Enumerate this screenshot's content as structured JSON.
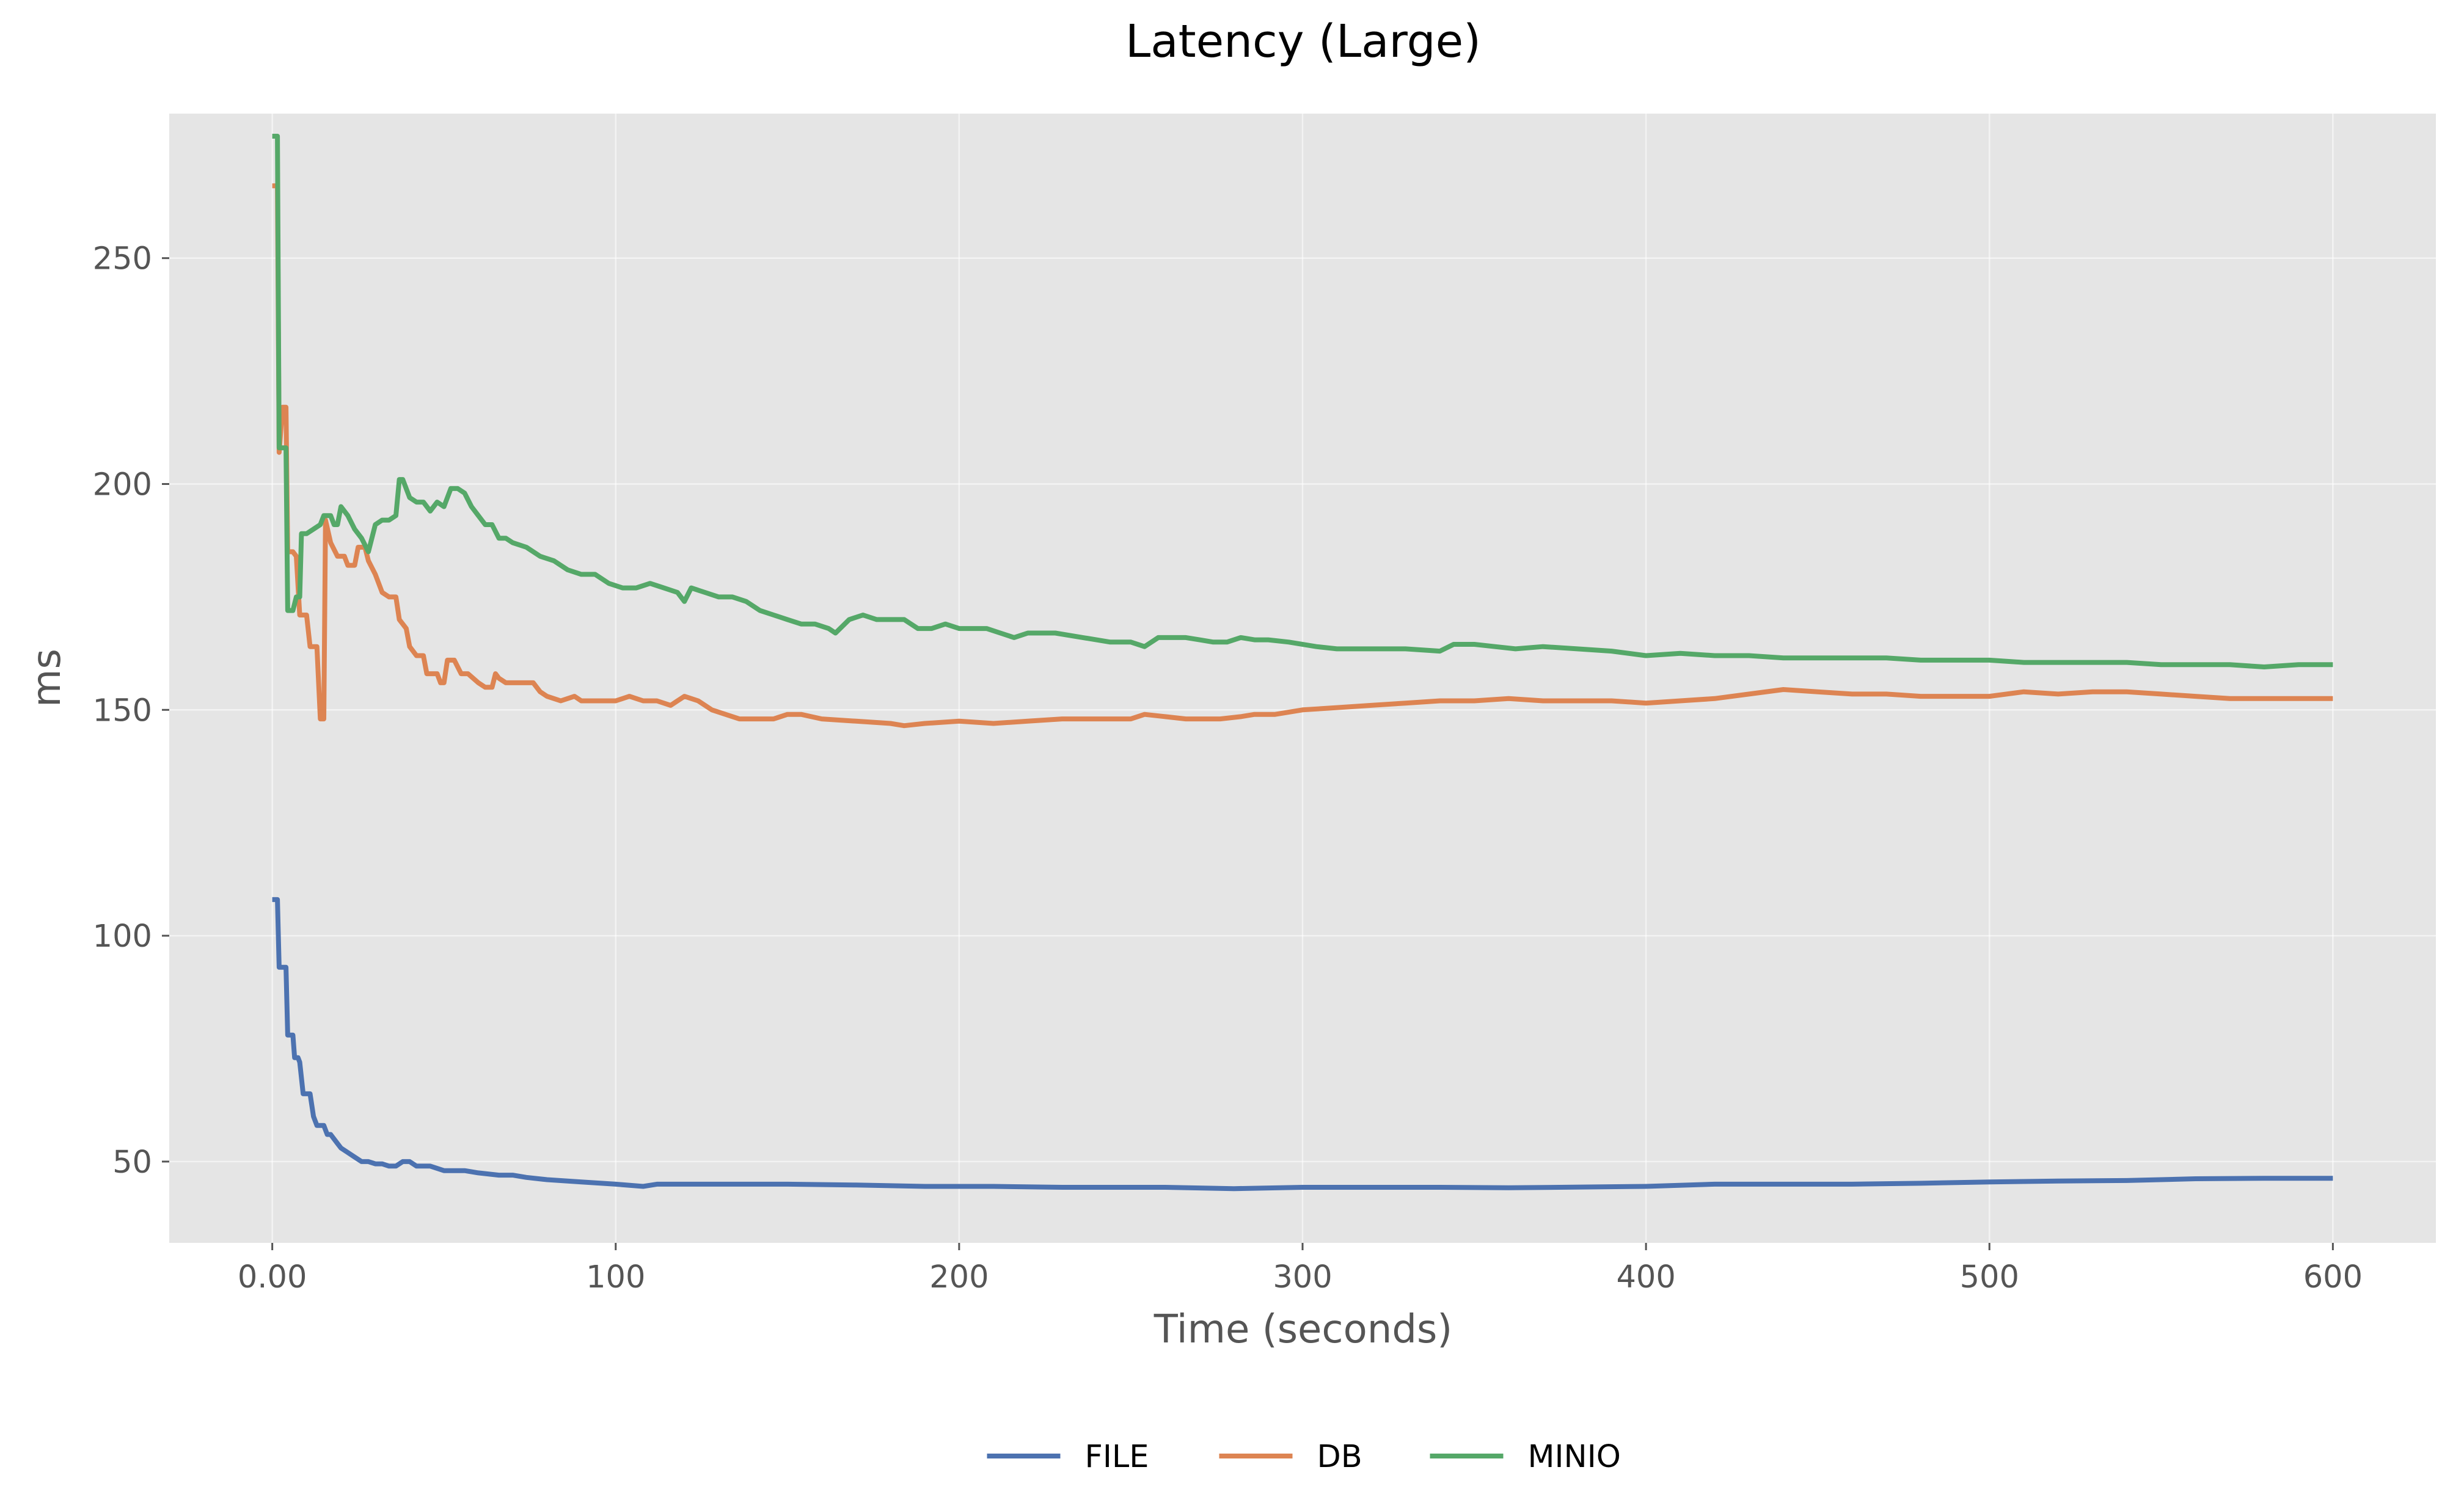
{
  "chart_data": {
    "type": "line",
    "title": "Latency (Large)",
    "xlabel": "Time (seconds)",
    "ylabel": "ms",
    "xlim": [
      -30,
      630
    ],
    "ylim": [
      32,
      282
    ],
    "x_ticks": [
      0,
      100,
      200,
      300,
      400,
      500,
      600
    ],
    "x_tick_labels": [
      "0.00",
      "100",
      "200",
      "300",
      "400",
      "500",
      "600"
    ],
    "y_ticks": [
      50,
      100,
      150,
      200,
      250
    ],
    "y_tick_labels": [
      "50",
      "100",
      "150",
      "200",
      "250"
    ],
    "grid": true,
    "legend_position": "bottom-center",
    "series": [
      {
        "name": "FILE",
        "color": "#4c72b0",
        "points": [
          [
            0,
            108
          ],
          [
            1.5,
            108
          ],
          [
            2,
            93
          ],
          [
            4,
            93
          ],
          [
            4.5,
            78
          ],
          [
            6,
            78
          ],
          [
            6.5,
            73
          ],
          [
            7.5,
            73
          ],
          [
            8,
            72
          ],
          [
            9,
            65
          ],
          [
            11,
            65
          ],
          [
            12,
            60
          ],
          [
            13,
            58
          ],
          [
            14,
            58
          ],
          [
            15,
            58
          ],
          [
            16,
            56
          ],
          [
            17,
            56
          ],
          [
            18,
            55
          ],
          [
            19,
            54
          ],
          [
            20,
            53
          ],
          [
            22,
            52
          ],
          [
            24,
            51
          ],
          [
            26,
            50
          ],
          [
            28,
            50
          ],
          [
            30,
            49.5
          ],
          [
            32,
            49.5
          ],
          [
            34,
            49
          ],
          [
            36,
            49
          ],
          [
            38,
            50
          ],
          [
            40,
            50
          ],
          [
            42,
            49
          ],
          [
            46,
            49
          ],
          [
            50,
            48
          ],
          [
            56,
            48
          ],
          [
            60,
            47.5
          ],
          [
            66,
            47
          ],
          [
            70,
            47
          ],
          [
            74,
            46.5
          ],
          [
            80,
            46
          ],
          [
            90,
            45.5
          ],
          [
            100,
            45
          ],
          [
            108,
            44.5
          ],
          [
            112,
            45
          ],
          [
            120,
            45
          ],
          [
            130,
            45
          ],
          [
            140,
            45
          ],
          [
            150,
            45
          ],
          [
            170,
            44.8
          ],
          [
            190,
            44.5
          ],
          [
            210,
            44.5
          ],
          [
            230,
            44.3
          ],
          [
            260,
            44.3
          ],
          [
            280,
            44
          ],
          [
            300,
            44.3
          ],
          [
            340,
            44.3
          ],
          [
            360,
            44.2
          ],
          [
            400,
            44.5
          ],
          [
            420,
            45
          ],
          [
            440,
            45
          ],
          [
            460,
            45
          ],
          [
            480,
            45.2
          ],
          [
            500,
            45.5
          ],
          [
            520,
            45.7
          ],
          [
            540,
            45.8
          ],
          [
            560,
            46.2
          ],
          [
            580,
            46.3
          ],
          [
            600,
            46.3
          ]
        ]
      },
      {
        "name": "DB",
        "color": "#dd8452",
        "points": [
          [
            0,
            266
          ],
          [
            1.5,
            266
          ],
          [
            2,
            207
          ],
          [
            3,
            217
          ],
          [
            4,
            217
          ],
          [
            4.5,
            185
          ],
          [
            6,
            185
          ],
          [
            7,
            184
          ],
          [
            8,
            171
          ],
          [
            10,
            171
          ],
          [
            11,
            164
          ],
          [
            13,
            164
          ],
          [
            14,
            148
          ],
          [
            15,
            148
          ],
          [
            15.5,
            192
          ],
          [
            17,
            187
          ],
          [
            19,
            184
          ],
          [
            21,
            184
          ],
          [
            22,
            182
          ],
          [
            24,
            182
          ],
          [
            25,
            186
          ],
          [
            27,
            186
          ],
          [
            28,
            183
          ],
          [
            30,
            180
          ],
          [
            32,
            176
          ],
          [
            34,
            175
          ],
          [
            36,
            175
          ],
          [
            37,
            170
          ],
          [
            39,
            168
          ],
          [
            40,
            164
          ],
          [
            42,
            162
          ],
          [
            44,
            162
          ],
          [
            45,
            158
          ],
          [
            47,
            158
          ],
          [
            48,
            158
          ],
          [
            49,
            156
          ],
          [
            50,
            156
          ],
          [
            51,
            161
          ],
          [
            53,
            161
          ],
          [
            55,
            158
          ],
          [
            57,
            158
          ],
          [
            60,
            156
          ],
          [
            62,
            155
          ],
          [
            64,
            155
          ],
          [
            65,
            158
          ],
          [
            66,
            157
          ],
          [
            68,
            156
          ],
          [
            72,
            156
          ],
          [
            76,
            156
          ],
          [
            78,
            154
          ],
          [
            80,
            153
          ],
          [
            84,
            152
          ],
          [
            88,
            153
          ],
          [
            90,
            152
          ],
          [
            95,
            152
          ],
          [
            100,
            152
          ],
          [
            104,
            153
          ],
          [
            108,
            152
          ],
          [
            112,
            152
          ],
          [
            116,
            151
          ],
          [
            118,
            152
          ],
          [
            120,
            153
          ],
          [
            124,
            152
          ],
          [
            128,
            150
          ],
          [
            132,
            149
          ],
          [
            136,
            148
          ],
          [
            140,
            148
          ],
          [
            146,
            148
          ],
          [
            150,
            149
          ],
          [
            154,
            149
          ],
          [
            160,
            148
          ],
          [
            170,
            147.5
          ],
          [
            180,
            147
          ],
          [
            184,
            146.5
          ],
          [
            190,
            147
          ],
          [
            200,
            147.5
          ],
          [
            210,
            147
          ],
          [
            220,
            147.5
          ],
          [
            230,
            148
          ],
          [
            240,
            148
          ],
          [
            250,
            148
          ],
          [
            254,
            149
          ],
          [
            260,
            148.5
          ],
          [
            266,
            148
          ],
          [
            276,
            148
          ],
          [
            282,
            148.5
          ],
          [
            286,
            149
          ],
          [
            292,
            149
          ],
          [
            300,
            150
          ],
          [
            310,
            150.5
          ],
          [
            320,
            151
          ],
          [
            330,
            151.5
          ],
          [
            340,
            152
          ],
          [
            350,
            152
          ],
          [
            360,
            152.5
          ],
          [
            370,
            152
          ],
          [
            380,
            152
          ],
          [
            390,
            152
          ],
          [
            400,
            151.5
          ],
          [
            410,
            152
          ],
          [
            420,
            152.5
          ],
          [
            430,
            153.5
          ],
          [
            440,
            154.5
          ],
          [
            450,
            154
          ],
          [
            460,
            153.5
          ],
          [
            470,
            153.5
          ],
          [
            480,
            153
          ],
          [
            490,
            153
          ],
          [
            500,
            153
          ],
          [
            510,
            154
          ],
          [
            520,
            153.5
          ],
          [
            530,
            154
          ],
          [
            540,
            154
          ],
          [
            550,
            153.5
          ],
          [
            560,
            153
          ],
          [
            570,
            152.5
          ],
          [
            580,
            152.5
          ],
          [
            590,
            152.5
          ],
          [
            600,
            152.5
          ]
        ]
      },
      {
        "name": "MINIO",
        "color": "#55a868",
        "points": [
          [
            0,
            277
          ],
          [
            1.5,
            277
          ],
          [
            2,
            208
          ],
          [
            4,
            208
          ],
          [
            4.5,
            172
          ],
          [
            6,
            172
          ],
          [
            7,
            175
          ],
          [
            8,
            175
          ],
          [
            8.5,
            189
          ],
          [
            10,
            189
          ],
          [
            12,
            190
          ],
          [
            14,
            191
          ],
          [
            15,
            193
          ],
          [
            17,
            193
          ],
          [
            18,
            191
          ],
          [
            19,
            191
          ],
          [
            20,
            195
          ],
          [
            22,
            193
          ],
          [
            24,
            190
          ],
          [
            26,
            188
          ],
          [
            28,
            185
          ],
          [
            30,
            191
          ],
          [
            32,
            192
          ],
          [
            34,
            192
          ],
          [
            36,
            193
          ],
          [
            37,
            201
          ],
          [
            38,
            201
          ],
          [
            40,
            197
          ],
          [
            42,
            196
          ],
          [
            44,
            196
          ],
          [
            46,
            194
          ],
          [
            48,
            196
          ],
          [
            50,
            195
          ],
          [
            52,
            199
          ],
          [
            54,
            199
          ],
          [
            56,
            198
          ],
          [
            58,
            195
          ],
          [
            60,
            193
          ],
          [
            62,
            191
          ],
          [
            64,
            191
          ],
          [
            66,
            188
          ],
          [
            68,
            188
          ],
          [
            70,
            187
          ],
          [
            74,
            186
          ],
          [
            78,
            184
          ],
          [
            82,
            183
          ],
          [
            86,
            181
          ],
          [
            90,
            180
          ],
          [
            94,
            180
          ],
          [
            98,
            178
          ],
          [
            102,
            177
          ],
          [
            106,
            177
          ],
          [
            110,
            178
          ],
          [
            114,
            177
          ],
          [
            118,
            176
          ],
          [
            120,
            174
          ],
          [
            122,
            177
          ],
          [
            126,
            176
          ],
          [
            130,
            175
          ],
          [
            134,
            175
          ],
          [
            138,
            174
          ],
          [
            142,
            172
          ],
          [
            146,
            171
          ],
          [
            150,
            170
          ],
          [
            154,
            169
          ],
          [
            158,
            169
          ],
          [
            162,
            168
          ],
          [
            164,
            167
          ],
          [
            168,
            170
          ],
          [
            172,
            171
          ],
          [
            176,
            170
          ],
          [
            180,
            170
          ],
          [
            184,
            170
          ],
          [
            188,
            168
          ],
          [
            192,
            168
          ],
          [
            196,
            169
          ],
          [
            200,
            168
          ],
          [
            204,
            168
          ],
          [
            208,
            168
          ],
          [
            212,
            167
          ],
          [
            216,
            166
          ],
          [
            220,
            167
          ],
          [
            224,
            167
          ],
          [
            228,
            167
          ],
          [
            236,
            166
          ],
          [
            244,
            165
          ],
          [
            250,
            165
          ],
          [
            254,
            164
          ],
          [
            258,
            166
          ],
          [
            262,
            166
          ],
          [
            266,
            166
          ],
          [
            270,
            165.5
          ],
          [
            274,
            165
          ],
          [
            278,
            165
          ],
          [
            282,
            166
          ],
          [
            286,
            165.5
          ],
          [
            290,
            165.5
          ],
          [
            296,
            165
          ],
          [
            304,
            164
          ],
          [
            310,
            163.5
          ],
          [
            320,
            163.5
          ],
          [
            330,
            163.5
          ],
          [
            340,
            163
          ],
          [
            344,
            164.5
          ],
          [
            350,
            164.5
          ],
          [
            356,
            164
          ],
          [
            362,
            163.5
          ],
          [
            370,
            164
          ],
          [
            380,
            163.5
          ],
          [
            390,
            163
          ],
          [
            400,
            162
          ],
          [
            410,
            162.5
          ],
          [
            420,
            162
          ],
          [
            430,
            162
          ],
          [
            440,
            161.5
          ],
          [
            450,
            161.5
          ],
          [
            460,
            161.5
          ],
          [
            470,
            161.5
          ],
          [
            480,
            161
          ],
          [
            490,
            161
          ],
          [
            500,
            161
          ],
          [
            510,
            160.5
          ],
          [
            520,
            160.5
          ],
          [
            530,
            160.5
          ],
          [
            540,
            160.5
          ],
          [
            550,
            160
          ],
          [
            560,
            160
          ],
          [
            570,
            160
          ],
          [
            580,
            159.5
          ],
          [
            590,
            160
          ],
          [
            600,
            160
          ]
        ]
      }
    ]
  }
}
